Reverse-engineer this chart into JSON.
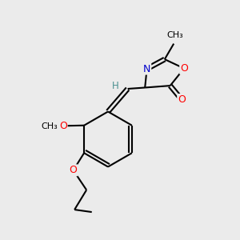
{
  "background_color": "#ebebeb",
  "atom_colors": {
    "O": "#ff0000",
    "N": "#0000cd",
    "H": "#4a9090"
  },
  "figsize": [
    3.0,
    3.0
  ],
  "dpi": 100
}
